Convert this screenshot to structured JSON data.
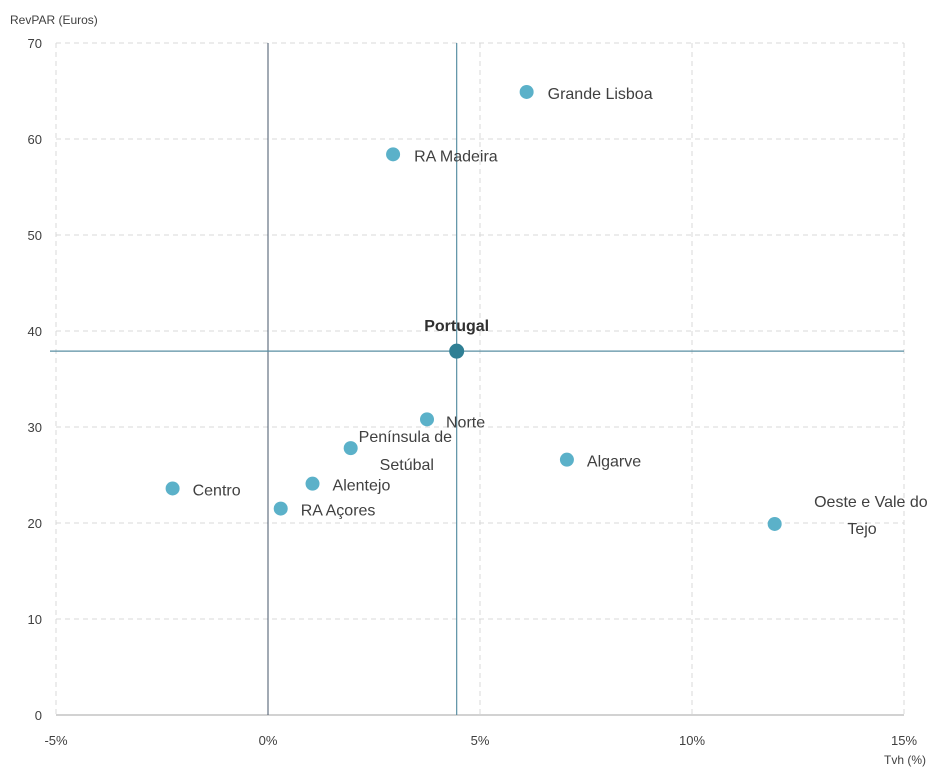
{
  "chart_data": {
    "type": "scatter",
    "xlabel": "Tvh (%)",
    "ylabel": "RevPAR (Euros)",
    "xlim": [
      -5,
      15
    ],
    "ylim": [
      0,
      70
    ],
    "x_ticks": [
      -5,
      0,
      5,
      10,
      15
    ],
    "x_tick_labels": [
      "-5%",
      "0%",
      "5%",
      "10%",
      "15%"
    ],
    "y_ticks": [
      0,
      10,
      20,
      30,
      40,
      50,
      60,
      70
    ],
    "y_tick_labels": [
      "0",
      "10",
      "20",
      "30",
      "40",
      "50",
      "60",
      "70"
    ],
    "grid": true,
    "reference_lines": {
      "x": 4.45,
      "y": 37.9
    },
    "colors": {
      "point": "#5bb1c9",
      "highlight": "#2f7f94",
      "reference": "#5a8fa3",
      "grid": "#d9d9d9"
    },
    "points": [
      {
        "label": "Grande  Lisboa",
        "x": 6.1,
        "y": 64.9
      },
      {
        "label": "RA Madeira",
        "x": 2.95,
        "y": 58.4
      },
      {
        "label": "Portugal",
        "x": 4.45,
        "y": 37.9,
        "highlight": true
      },
      {
        "label": "Norte",
        "x": 3.75,
        "y": 30.8
      },
      {
        "label": "Península de",
        "label2": "Setúbal",
        "x": 1.95,
        "y": 27.8
      },
      {
        "label": "Algarve",
        "x": 7.05,
        "y": 26.6
      },
      {
        "label": "Centro",
        "x": -2.25,
        "y": 23.6
      },
      {
        "label": "Alentejo",
        "x": 1.05,
        "y": 24.1
      },
      {
        "label": "RA Açores",
        "x": 0.3,
        "y": 21.5
      },
      {
        "label": "Oeste e Vale do",
        "label2": "Tejo",
        "x": 11.95,
        "y": 19.9
      }
    ]
  }
}
